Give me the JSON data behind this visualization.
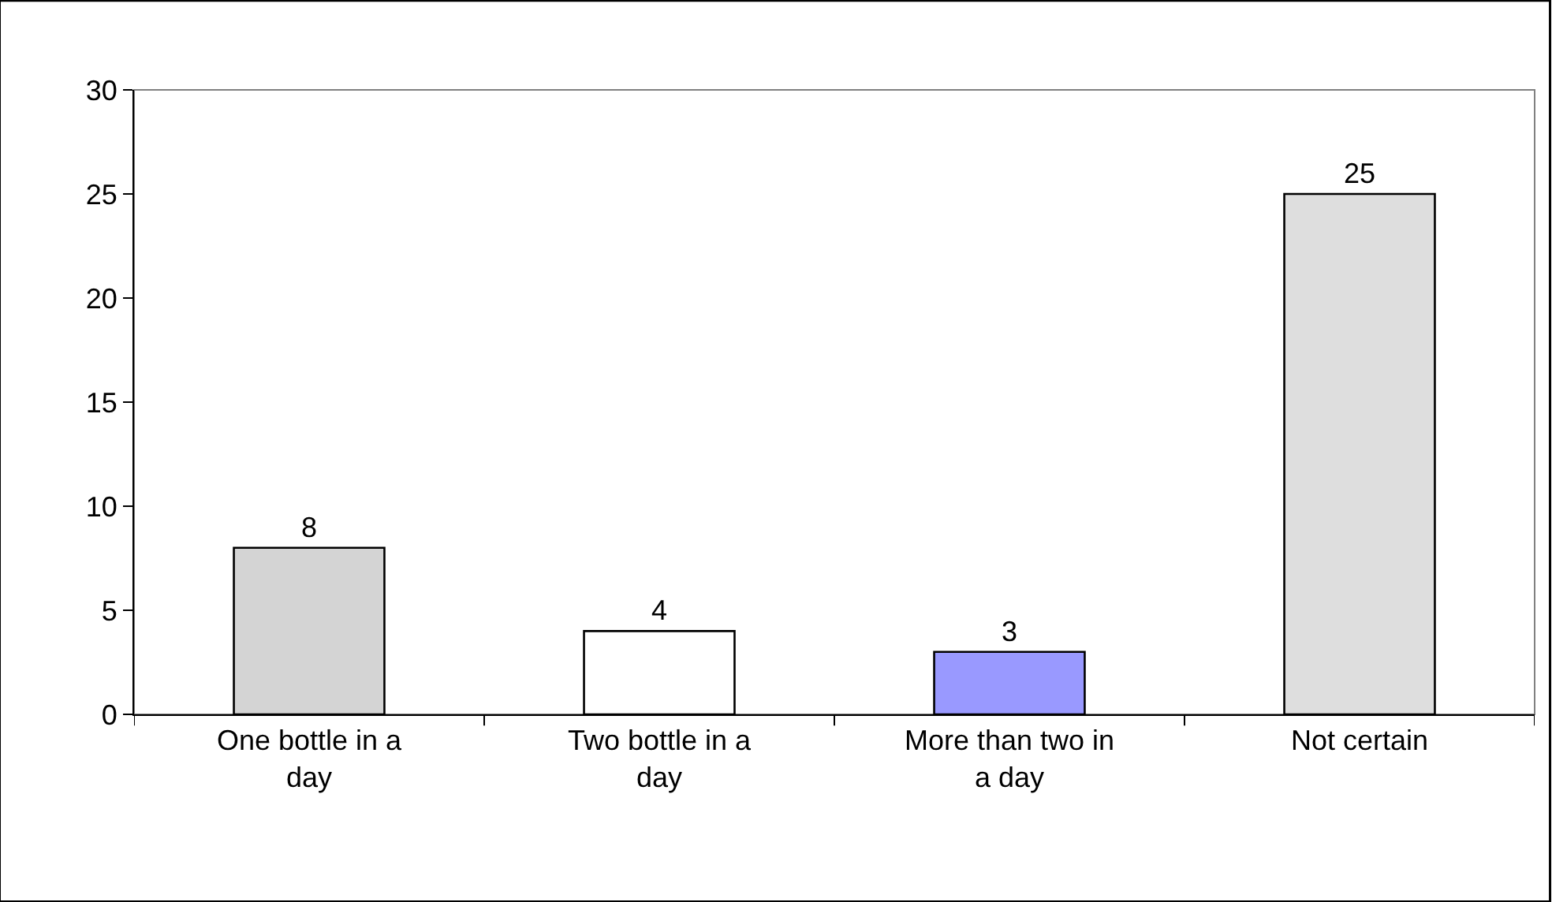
{
  "chart_data": {
    "type": "bar",
    "categories": [
      "One bottle in a day",
      "Two bottle in a day",
      "More than two in a day",
      "Not certain"
    ],
    "values": [
      8,
      4,
      3,
      25
    ],
    "colors": [
      "#d4d4d4",
      "#ffffff",
      "#9999ff",
      "#dedede"
    ],
    "ylim": [
      0,
      30
    ],
    "yticks": [
      0,
      5,
      10,
      15,
      20,
      25,
      30
    ],
    "data_labels": true
  }
}
